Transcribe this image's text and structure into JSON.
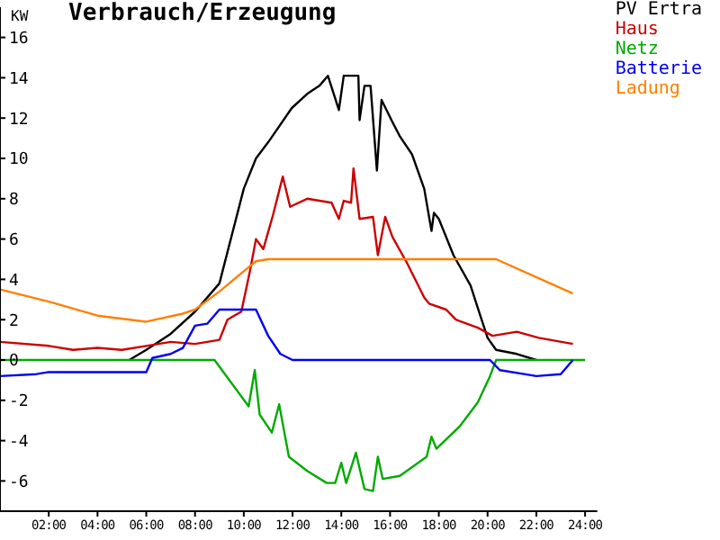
{
  "chart_data": {
    "type": "line",
    "title": "Verbrauch/Erzeugung",
    "ylabel": "KW",
    "xlim": [
      0,
      24.5
    ],
    "xticks": [
      {
        "value": 2,
        "label": "02:00"
      },
      {
        "value": 4,
        "label": "04:00"
      },
      {
        "value": 6,
        "label": "06:00"
      },
      {
        "value": 8,
        "label": "08:00"
      },
      {
        "value": 10,
        "label": "10:00"
      },
      {
        "value": 12,
        "label": "12:00"
      },
      {
        "value": 14,
        "label": "14:00"
      },
      {
        "value": 16,
        "label": "16:00"
      },
      {
        "value": 18,
        "label": "18:00"
      },
      {
        "value": 20,
        "label": "20:00"
      },
      {
        "value": 22,
        "label": "22:00"
      },
      {
        "value": 24,
        "label": "24:00"
      }
    ],
    "ylim": [
      -7.5,
      17.5
    ],
    "yticks": [
      -6,
      -4,
      -2,
      0,
      2,
      4,
      6,
      8,
      10,
      12,
      14,
      16
    ],
    "grid": false,
    "legend": "top right",
    "marker": "none",
    "line_style": "solid",
    "series": [
      {
        "name": "PV Ertra",
        "color": "#000000",
        "x": [
          5.3,
          6,
          7,
          8,
          9,
          10,
          10.5,
          11,
          11.97,
          12.6,
          13.1,
          13.45,
          13.9,
          14.1,
          14.7,
          14.75,
          14.95,
          15.2,
          15.46,
          15.65,
          16.1,
          16.4,
          16.9,
          17.4,
          17.7,
          17.8,
          18,
          18.6,
          19.3,
          19.7,
          20,
          20.35,
          21.2,
          22
        ],
        "values": [
          0,
          0.5,
          1.3,
          2.4,
          3.8,
          8.5,
          10,
          10.8,
          12.5,
          13.2,
          13.6,
          14.1,
          12.4,
          14.1,
          14.1,
          11.9,
          13.6,
          13.6,
          9.4,
          12.9,
          11.8,
          11.1,
          10.2,
          8.5,
          6.4,
          7.3,
          7,
          5.2,
          3.7,
          2.2,
          1.1,
          0.5,
          0.3,
          0
        ]
      },
      {
        "name": "Haus",
        "color": "#cc0000",
        "x": [
          0,
          2,
          3,
          4,
          5,
          6,
          7,
          8,
          9,
          9.33,
          9.9,
          10.25,
          10.5,
          10.8,
          11.2,
          11.6,
          11.9,
          12.6,
          13.6,
          13.9,
          14.1,
          14.4,
          14.5,
          14.75,
          15.3,
          15.5,
          15.8,
          16.1,
          16.7,
          17.4,
          17.6,
          18.3,
          18.7,
          19.6,
          20.2,
          21.2,
          22.1,
          23.5
        ],
        "values": [
          0.9,
          0.7,
          0.5,
          0.6,
          0.5,
          0.7,
          0.9,
          0.8,
          1,
          2,
          2.4,
          4.4,
          6,
          5.5,
          7.2,
          9.1,
          7.6,
          8,
          7.8,
          7,
          7.9,
          7.8,
          9.5,
          7,
          7.1,
          5.2,
          7.1,
          6.1,
          4.8,
          3.1,
          2.8,
          2.5,
          2,
          1.6,
          1.2,
          1.4,
          1.1,
          0.8
        ]
      },
      {
        "name": "Netz",
        "color": "#00aa00",
        "x": [
          0,
          8.8,
          10.2,
          10.45,
          10.65,
          11.15,
          11.45,
          11.85,
          12.6,
          13.4,
          13.75,
          14,
          14.2,
          14.6,
          14.95,
          15.3,
          15.5,
          15.7,
          16.4,
          17.5,
          17.7,
          17.9,
          18.85,
          19.6,
          20.1,
          20.35,
          24
        ],
        "values": [
          0,
          0,
          -2.3,
          -0.5,
          -2.7,
          -3.6,
          -2.2,
          -4.8,
          -5.5,
          -6.1,
          -6.1,
          -5.1,
          -6.1,
          -4.6,
          -6.4,
          -6.5,
          -4.8,
          -5.9,
          -5.75,
          -4.8,
          -3.8,
          -4.4,
          -3.3,
          -2.1,
          -0.8,
          0,
          0
        ]
      },
      {
        "name": "Batterie",
        "color": "#0000ee",
        "x": [
          0,
          1.5,
          2,
          6,
          6.25,
          7,
          7.5,
          8,
          8.5,
          9,
          10.5,
          11,
          11.5,
          12,
          20.1,
          20.5,
          21.5,
          22,
          23,
          23.5
        ],
        "values": [
          -0.8,
          -0.7,
          -0.6,
          -0.6,
          0.1,
          0.3,
          0.6,
          1.7,
          1.8,
          2.5,
          2.5,
          1.2,
          0.3,
          0,
          0,
          -0.5,
          -0.7,
          -0.8,
          -0.7,
          0
        ]
      },
      {
        "name": "Ladung",
        "color": "#ff8000",
        "x": [
          0,
          2,
          4,
          6,
          7.5,
          8,
          9,
          10,
          10.5,
          11,
          20.35,
          23.5
        ],
        "values": [
          3.5,
          2.9,
          2.2,
          1.9,
          2.3,
          2.5,
          3.4,
          4.4,
          4.9,
          5,
          5,
          3.3
        ]
      }
    ]
  }
}
